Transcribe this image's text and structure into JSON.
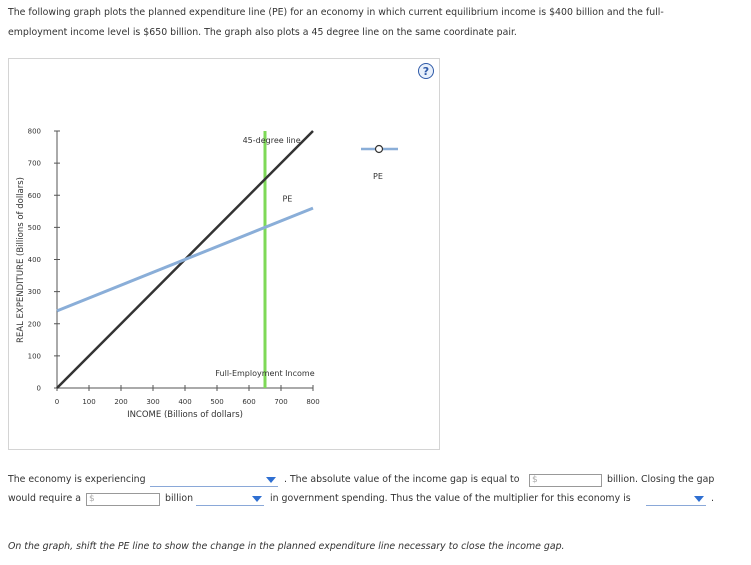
{
  "intro": {
    "line1": "The following graph plots the planned expenditure line (PE) for an economy in which current equilibrium income is $400 billion and the full-",
    "line2": "employment income level is $650 billion. The graph also plots a 45 degree line on the same coordinate pair."
  },
  "help_label": "?",
  "chart_data": {
    "type": "line",
    "xlabel": "INCOME (Billions of dollars)",
    "ylabel": "REAL EXPENDITURE (Billions of dollars)",
    "xlim": [
      0,
      800
    ],
    "ylim": [
      0,
      800
    ],
    "x_ticks": [
      0,
      100,
      200,
      300,
      400,
      500,
      600,
      700,
      800
    ],
    "y_ticks": [
      0,
      100,
      200,
      300,
      400,
      500,
      600,
      700,
      800
    ],
    "series": [
      {
        "name": "45-degree line",
        "color": "#333333",
        "points": [
          [
            0,
            0
          ],
          [
            800,
            800
          ]
        ]
      },
      {
        "name": "PE",
        "color": "#8aaed8",
        "points": [
          [
            0,
            240
          ],
          [
            800,
            560
          ]
        ]
      }
    ],
    "vlines": [
      {
        "name": "Full-Employment Income",
        "x": 650,
        "color": "#7ed957"
      }
    ],
    "legend": {
      "label": "PE",
      "placement": "right"
    }
  },
  "bottom": {
    "line1_start": "The economy is experiencing",
    "line1_mid": ". The absolute value of the income gap is equal to",
    "line1_end": "billion. Closing the gap",
    "line2_start": "would require a",
    "billion": "billion",
    "line2_mid": "in government spending. Thus the value of the multiplier for this economy is",
    "period": ".",
    "dollar": "$"
  },
  "footer_note": "On the graph, shift the PE line to show the change in the planned expenditure line necessary to close the income gap."
}
